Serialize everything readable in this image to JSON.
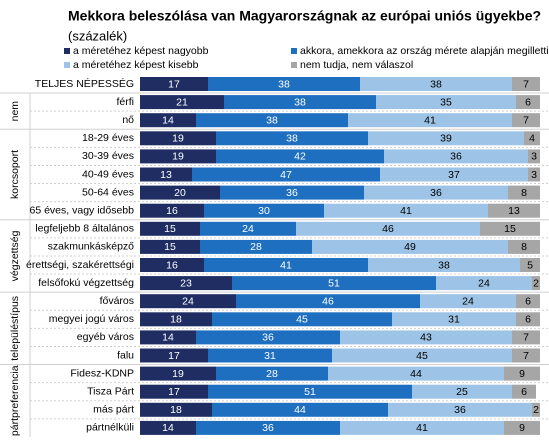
{
  "chart_data": {
    "type": "bar",
    "orientation": "horizontal",
    "stacked": true,
    "title": "Mekkora beleszólása van Magyarországnak az európai uniós ügyekbe?",
    "subtitle": "(százalék)",
    "categories": [
      "TELJES NÉPESSÉG",
      "férfi",
      "nő",
      "18-29 éves",
      "30-39 éves",
      "40-49 éves",
      "50-64 éves",
      "65 éves, vagy idősebb",
      "legfeljebb 8 általános",
      "szakmunkásképző",
      "érettségi, szakérettségi",
      "felsőfokú végzettség",
      "főváros",
      "megyei jogú város",
      "egyéb város",
      "falu",
      "Fidesz-KDNP",
      "Tisza Párt",
      "más párt",
      "pártnélküli"
    ],
    "groups": [
      {
        "label": "nem",
        "rows": 2
      },
      {
        "label": "korcsoport",
        "rows": 5
      },
      {
        "label": "végzettség",
        "rows": 4
      },
      {
        "label": "településtípus",
        "rows": 4
      },
      {
        "label": "pártpreferencia",
        "rows": 4
      }
    ],
    "xlim": [
      0,
      100
    ],
    "series": [
      {
        "name": "a méretéhez képest nagyobb",
        "color": "#1f2d63",
        "text_color": "#ffffff",
        "values": [
          17,
          21,
          14,
          19,
          19,
          13,
          20,
          16,
          15,
          15,
          16,
          23,
          24,
          18,
          14,
          17,
          19,
          17,
          18,
          14
        ]
      },
      {
        "name": "akkora, amekkora az ország mérete alapján megilletti",
        "color": "#1f6fc0",
        "text_color": "#ffffff",
        "values": [
          38,
          38,
          38,
          38,
          42,
          47,
          36,
          30,
          24,
          28,
          41,
          51,
          46,
          45,
          36,
          31,
          28,
          51,
          44,
          36
        ]
      },
      {
        "name": "a méretéhez képest kisebb",
        "color": "#9dc3e6",
        "text_color": "#000000",
        "values": [
          38,
          35,
          41,
          39,
          36,
          37,
          36,
          41,
          46,
          49,
          38,
          24,
          24,
          31,
          43,
          45,
          44,
          25,
          36,
          41
        ]
      },
      {
        "name": "nem tudja, nem válaszol",
        "color": "#a6a6a6",
        "text_color": "#000000",
        "values": [
          7,
          6,
          7,
          4,
          3,
          3,
          8,
          13,
          15,
          8,
          5,
          2,
          6,
          6,
          7,
          7,
          9,
          6,
          2,
          9
        ]
      }
    ]
  }
}
